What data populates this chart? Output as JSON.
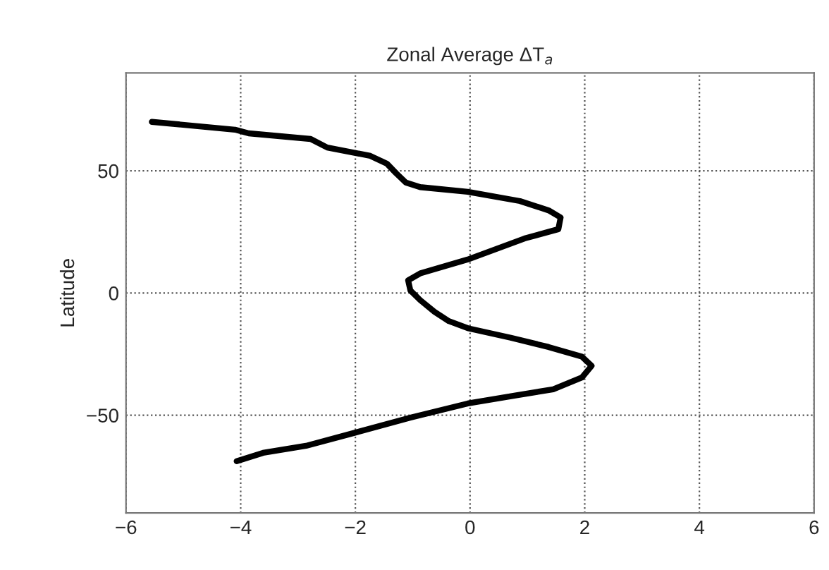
{
  "chart_data": {
    "type": "line",
    "title": "Zonal Average ΔT$_{a}$",
    "ylabel": "Latitude",
    "xlim": [
      -6,
      6
    ],
    "xticks": [
      -6,
      -4,
      -2,
      0,
      2,
      4,
      6
    ],
    "ylim": [
      -90,
      90
    ],
    "yticks": [
      -50,
      0,
      50
    ],
    "grid": true,
    "line_style": "solid",
    "marker": "none",
    "series": [
      {
        "color": "#000000",
        "x": [
          -5.55,
          -4.1,
          -3.86,
          -2.78,
          -2.49,
          -1.74,
          -1.45,
          -1.29,
          -1.12,
          -0.87,
          -0.04,
          0.87,
          1.37,
          1.58,
          1.54,
          0.95,
          -0.04,
          -0.87,
          -1.08,
          -1.04,
          -0.87,
          -0.62,
          -0.37,
          -0.04,
          0.71,
          1.37,
          1.95,
          2.12,
          1.95,
          1.45,
          0.79,
          -0.04,
          -1.04,
          -2.03,
          -2.86,
          -3.61,
          -4.07
        ],
        "values": [
          70.0,
          66.8,
          65.3,
          63,
          59.5,
          56.1,
          52.9,
          49,
          45.2,
          43.3,
          41.4,
          37.6,
          33.8,
          30.9,
          26.1,
          22.3,
          13.7,
          8.0,
          5.2,
          1,
          -2.9,
          -7.7,
          -11.5,
          -14.4,
          -18.3,
          -22.1,
          -26,
          -29.8,
          -34.6,
          -39.4,
          -41.9,
          -45.2,
          -51,
          -57.3,
          -62.5,
          -65.4,
          -68.8
        ]
      }
    ]
  }
}
